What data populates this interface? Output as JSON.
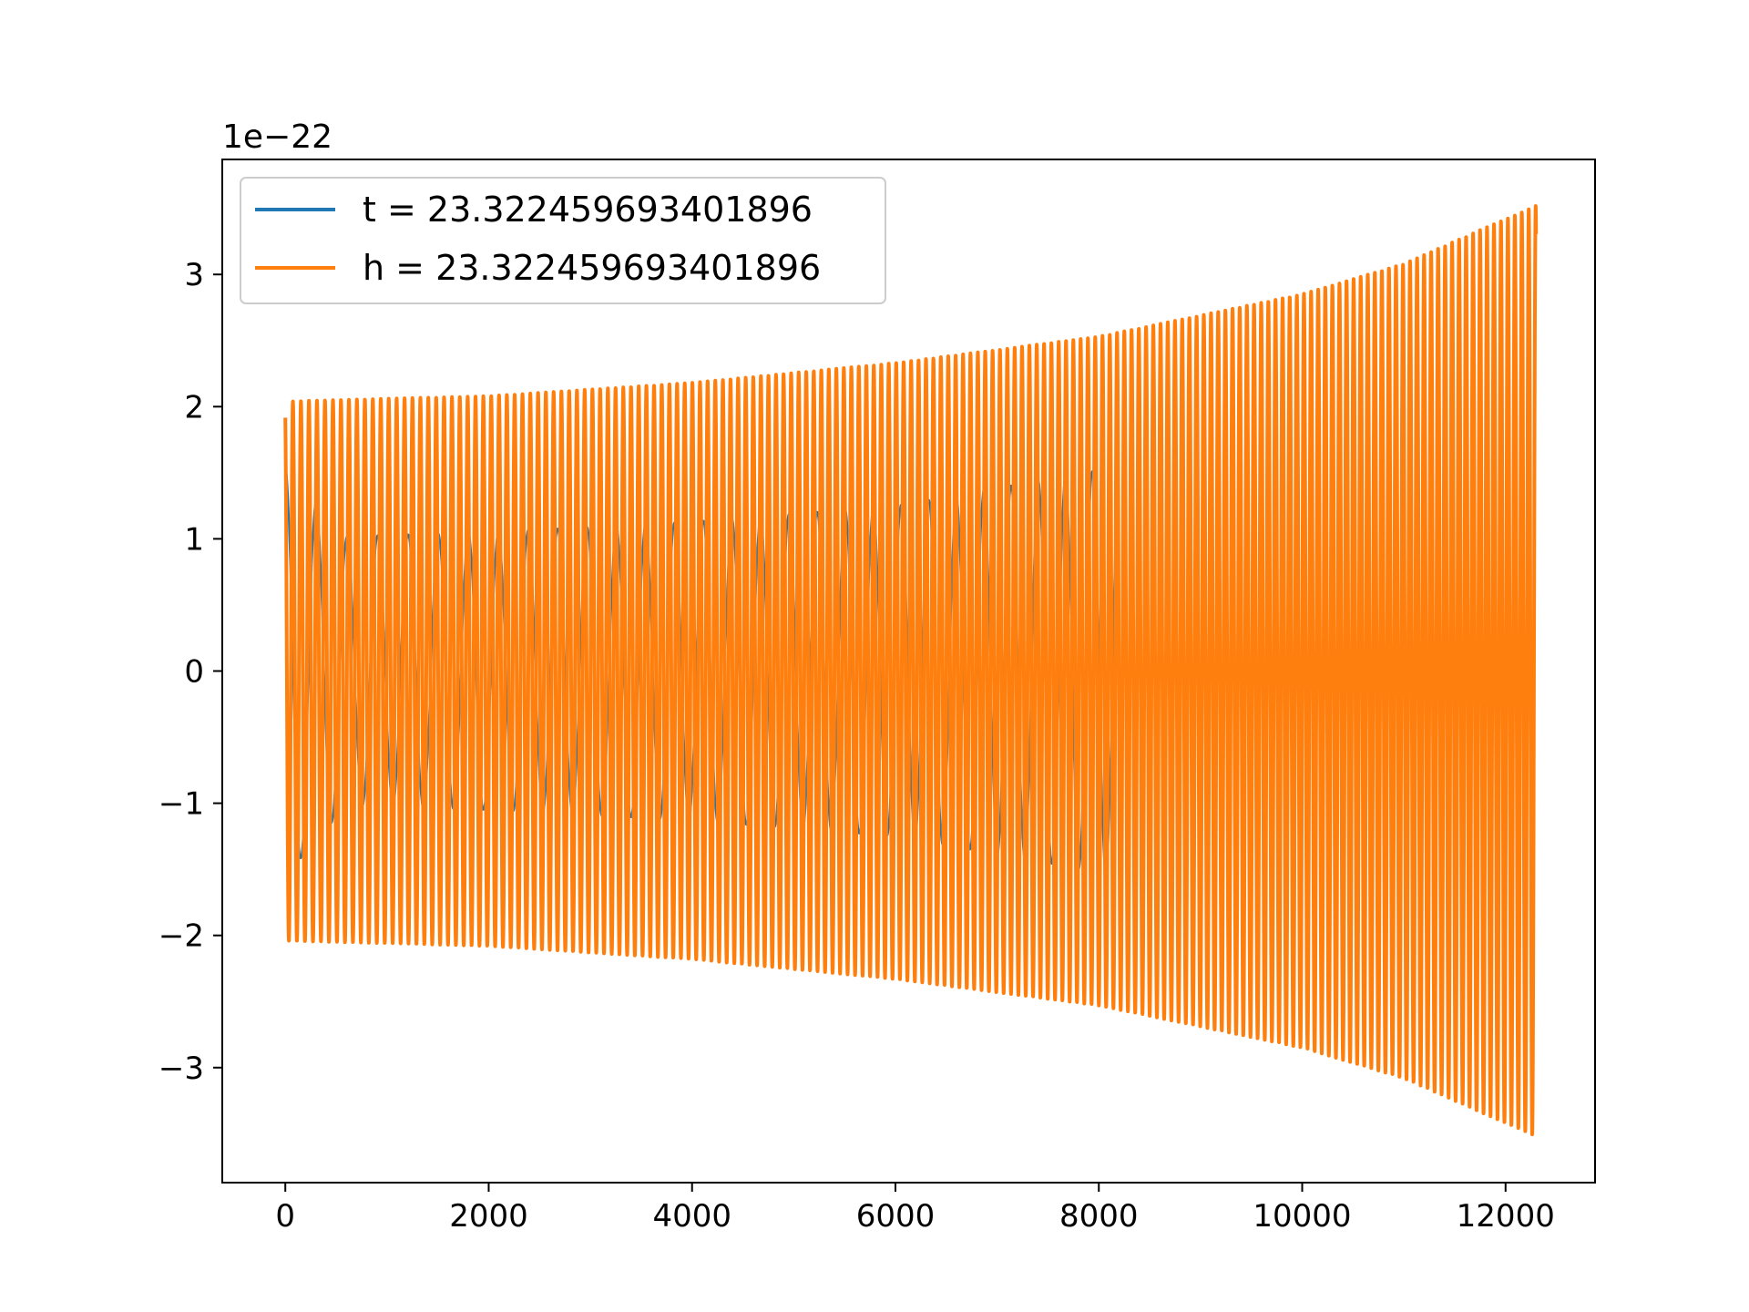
{
  "chart_data": {
    "type": "line",
    "title": "",
    "xlabel": "",
    "ylabel": "",
    "xlim": [
      -620,
      12880
    ],
    "ylim": [
      -3.87,
      3.87
    ],
    "y_offset_text": "1e−22",
    "xticks": [
      0,
      2000,
      4000,
      6000,
      8000,
      10000,
      12000
    ],
    "xtick_labels": [
      "0",
      "2000",
      "4000",
      "6000",
      "8000",
      "10000",
      "12000"
    ],
    "yticks": [
      -3,
      -2,
      -1,
      0,
      1,
      2,
      3
    ],
    "ytick_labels": [
      "−3",
      "−2",
      "−1",
      "0",
      "1",
      "2",
      "3"
    ],
    "grid": false,
    "legend_position": "upper-left",
    "series": [
      {
        "name": "t = 23.322459693401896",
        "color": "#1f77b4",
        "x_start": 0,
        "x_end": 8200,
        "envelope_x": [
          0,
          600,
          2000,
          4000,
          6000,
          8000,
          8200
        ],
        "envelope_y": [
          1.55,
          1.02,
          1.05,
          1.13,
          1.25,
          1.52,
          1.55
        ],
        "cycles": 29
      },
      {
        "name": "h = 23.322459693401896",
        "color": "#ff7f0e",
        "x_start": 0,
        "x_end": 12300,
        "envelope_x": [
          0,
          2000,
          4000,
          6000,
          8000,
          10000,
          11000,
          12000,
          12300
        ],
        "envelope_y": [
          2.04,
          2.08,
          2.18,
          2.33,
          2.53,
          2.85,
          3.08,
          3.42,
          3.52
        ],
        "cycles": 168
      }
    ]
  }
}
